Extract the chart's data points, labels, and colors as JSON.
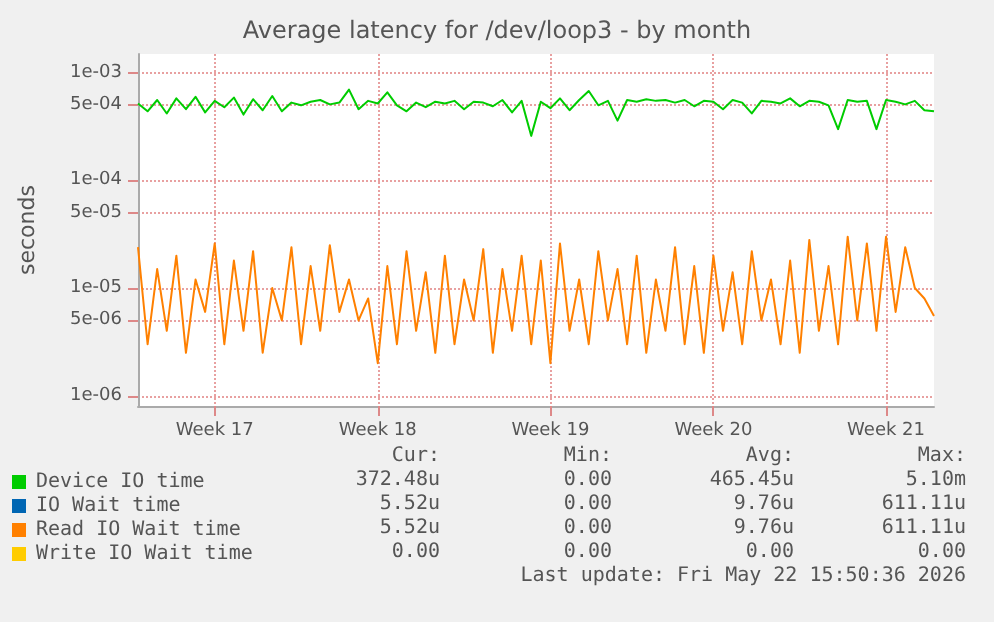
{
  "chart_data": {
    "type": "line",
    "title": "Average latency for /dev/loop3 - by month",
    "ylabel": "seconds",
    "log": "y",
    "grid": true,
    "marker": "none",
    "line_style": "solid",
    "legend": "bottom left",
    "categories": [
      null,
      null,
      null,
      null,
      null,
      null,
      null,
      null,
      "Week 17",
      null,
      null,
      null,
      null,
      null,
      null,
      null,
      null,
      null,
      null,
      null,
      null,
      null,
      null,
      null,
      null,
      "Week 18",
      null,
      null,
      null,
      null,
      null,
      null,
      null,
      null,
      null,
      null,
      null,
      null,
      null,
      null,
      null,
      null,
      null,
      "Week 19",
      null,
      null,
      null,
      null,
      null,
      null,
      null,
      null,
      null,
      null,
      null,
      null,
      null,
      null,
      null,
      null,
      "Week 20",
      null,
      null,
      null,
      null,
      null,
      null,
      null,
      null,
      null,
      null,
      null,
      null,
      null,
      null,
      null,
      null,
      null,
      "Week 21",
      null,
      null,
      null,
      null,
      null
    ],
    "ylim": [
      8e-07,
      0.0015
    ],
    "yticks": [
      {
        "value": 1e-06,
        "label": "1e-06"
      },
      {
        "value": 5e-06,
        "label": "5e-06"
      },
      {
        "value": 1e-05,
        "label": "1e-05"
      },
      {
        "value": 5e-05,
        "label": "5e-05"
      },
      {
        "value": 0.0001,
        "label": "1e-04"
      },
      {
        "value": 0.0005,
        "label": "5e-04"
      },
      {
        "value": 0.001,
        "label": "1e-03"
      }
    ],
    "series": [
      {
        "name": "Device IO time",
        "color": "#00cc00",
        "values": [
          0.00052,
          0.00044,
          0.00056,
          0.00042,
          0.00058,
          0.00046,
          0.0006,
          0.00043,
          0.00055,
          0.00048,
          0.00059,
          0.00041,
          0.00057,
          0.00045,
          0.00061,
          0.00044,
          0.00053,
          0.0005,
          0.00054,
          0.00056,
          0.00051,
          0.00053,
          0.0007,
          0.00046,
          0.00055,
          0.00052,
          0.00066,
          0.0005,
          0.00044,
          0.00053,
          0.00048,
          0.00054,
          0.00052,
          0.00055,
          0.00046,
          0.00054,
          0.00053,
          0.00049,
          0.00056,
          0.00043,
          0.00055,
          0.00026,
          0.00054,
          0.00047,
          0.00058,
          0.00045,
          0.00056,
          0.00068,
          0.0005,
          0.00055,
          0.00036,
          0.00056,
          0.00054,
          0.00057,
          0.00055,
          0.00056,
          0.00053,
          0.00056,
          0.00049,
          0.00055,
          0.00054,
          0.00046,
          0.00056,
          0.00053,
          0.00042,
          0.00055,
          0.00054,
          0.00052,
          0.00058,
          0.00049,
          0.00055,
          0.00054,
          0.0005,
          0.0003,
          0.00056,
          0.00054,
          0.00055,
          0.0003,
          0.00056,
          0.00054,
          0.00051,
          0.00055,
          0.00045,
          0.00044
        ]
      },
      {
        "name": "IO Wait time",
        "color": "#0066b3",
        "values": [
          null,
          null,
          null,
          null,
          null,
          null,
          null,
          null,
          null,
          null,
          null,
          null,
          null,
          null,
          null,
          null,
          null,
          null,
          null,
          null,
          null,
          null,
          null,
          null,
          null,
          null,
          null,
          null,
          null,
          null,
          null,
          null,
          null,
          null,
          null,
          null,
          null,
          null,
          null,
          null,
          null,
          null,
          null,
          null,
          null,
          null,
          null,
          null,
          null,
          null,
          null,
          null,
          null,
          null,
          null,
          null,
          null,
          null,
          null,
          null,
          null,
          null,
          null,
          null,
          null,
          null,
          null,
          null,
          null,
          null,
          null,
          null,
          null,
          null,
          null,
          null,
          null,
          null,
          null,
          null,
          null,
          null,
          null,
          null
        ]
      },
      {
        "name": "Read IO Wait time",
        "color": "#ff8000",
        "values": [
          2.4e-05,
          3e-06,
          1.5e-05,
          4e-06,
          2e-05,
          2.5e-06,
          1.2e-05,
          6e-06,
          2.6e-05,
          3e-06,
          1.8e-05,
          4e-06,
          2.2e-05,
          2.5e-06,
          1e-05,
          5e-06,
          2.4e-05,
          3e-06,
          1.6e-05,
          4e-06,
          2.5e-05,
          6e-06,
          1.2e-05,
          5e-06,
          8e-06,
          2e-06,
          1.6e-05,
          3e-06,
          2.2e-05,
          4e-06,
          1.4e-05,
          2.5e-06,
          2e-05,
          3e-06,
          1.2e-05,
          5e-06,
          2.3e-05,
          2.5e-06,
          1.5e-05,
          4e-06,
          2e-05,
          3e-06,
          1.8e-05,
          2e-06,
          2.6e-05,
          4e-06,
          1.2e-05,
          3e-06,
          2.2e-05,
          5e-06,
          1.5e-05,
          3e-06,
          2e-05,
          2.5e-06,
          1.2e-05,
          4e-06,
          2.4e-05,
          3e-06,
          1.6e-05,
          2.5e-06,
          2e-05,
          4e-06,
          1.4e-05,
          3e-06,
          2.2e-05,
          5e-06,
          1.2e-05,
          3e-06,
          1.8e-05,
          2.5e-06,
          2.8e-05,
          4e-06,
          1.6e-05,
          3e-06,
          3e-05,
          5e-06,
          2.6e-05,
          4e-06,
          3e-05,
          6e-06,
          2.4e-05,
          1e-05,
          8e-06,
          5.5e-06
        ]
      },
      {
        "name": "Write IO Wait time",
        "color": "#ffcc00",
        "values": [
          null,
          null,
          null,
          null,
          null,
          null,
          null,
          null,
          null,
          null,
          null,
          null,
          null,
          null,
          null,
          null,
          null,
          null,
          null,
          null,
          null,
          null,
          null,
          null,
          null,
          null,
          null,
          null,
          null,
          null,
          null,
          null,
          null,
          null,
          null,
          null,
          null,
          null,
          null,
          null,
          null,
          null,
          null,
          null,
          null,
          null,
          null,
          null,
          null,
          null,
          null,
          null,
          null,
          null,
          null,
          null,
          null,
          null,
          null,
          null,
          null,
          null,
          null,
          null,
          null,
          null,
          null,
          null,
          null,
          null,
          null,
          null,
          null,
          null,
          null,
          null,
          null,
          null,
          null,
          null,
          null,
          null,
          null,
          null
        ]
      }
    ],
    "annotations": [
      "Cur:",
      "Min:",
      "Avg:",
      "Max:",
      "372.48u",
      "0.00",
      "465.45u",
      "5.10m",
      "5.52u",
      "0.00",
      "9.76u",
      "611.11u",
      "5.52u",
      "0.00",
      "9.76u",
      "611.11u",
      "0.00",
      "0.00",
      "0.00",
      "0.00",
      "Last update: Fri May 22 15:50:36 2026"
    ]
  }
}
